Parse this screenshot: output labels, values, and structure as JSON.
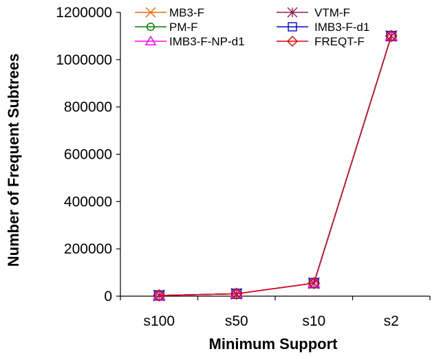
{
  "chart_data": {
    "type": "line",
    "xlabel": "Minimum Support",
    "ylabel": "Number of Frequent Subtrees",
    "categories": [
      "s100",
      "s50",
      "s10",
      "s2"
    ],
    "ylim": [
      0,
      1200000
    ],
    "yticks": [
      0,
      200000,
      400000,
      600000,
      800000,
      1000000,
      1200000
    ],
    "grid": false,
    "legend_position": "top",
    "series": [
      {
        "name": "MB3-F",
        "marker": "x",
        "color": "#FF6600",
        "values": [
          3000,
          10000,
          55000,
          1100000
        ]
      },
      {
        "name": "VTM-F",
        "marker": "star",
        "color": "#8B1A4A",
        "values": [
          3000,
          10000,
          55000,
          1100000
        ]
      },
      {
        "name": "PM-F",
        "marker": "circle",
        "color": "#008000",
        "values": [
          3000,
          10000,
          55000,
          1100000
        ]
      },
      {
        "name": "IMB3-F-d1",
        "marker": "square",
        "color": "#0000CC",
        "values": [
          3000,
          10000,
          55000,
          1100000
        ]
      },
      {
        "name": "IMB3-F-NP-d1",
        "marker": "triangle",
        "color": "#FF00FF",
        "values": [
          3000,
          10000,
          55000,
          1100000
        ]
      },
      {
        "name": "FREQT-F",
        "marker": "diamond",
        "color": "#E00000",
        "values": [
          3000,
          10000,
          55000,
          1100000
        ]
      }
    ]
  }
}
